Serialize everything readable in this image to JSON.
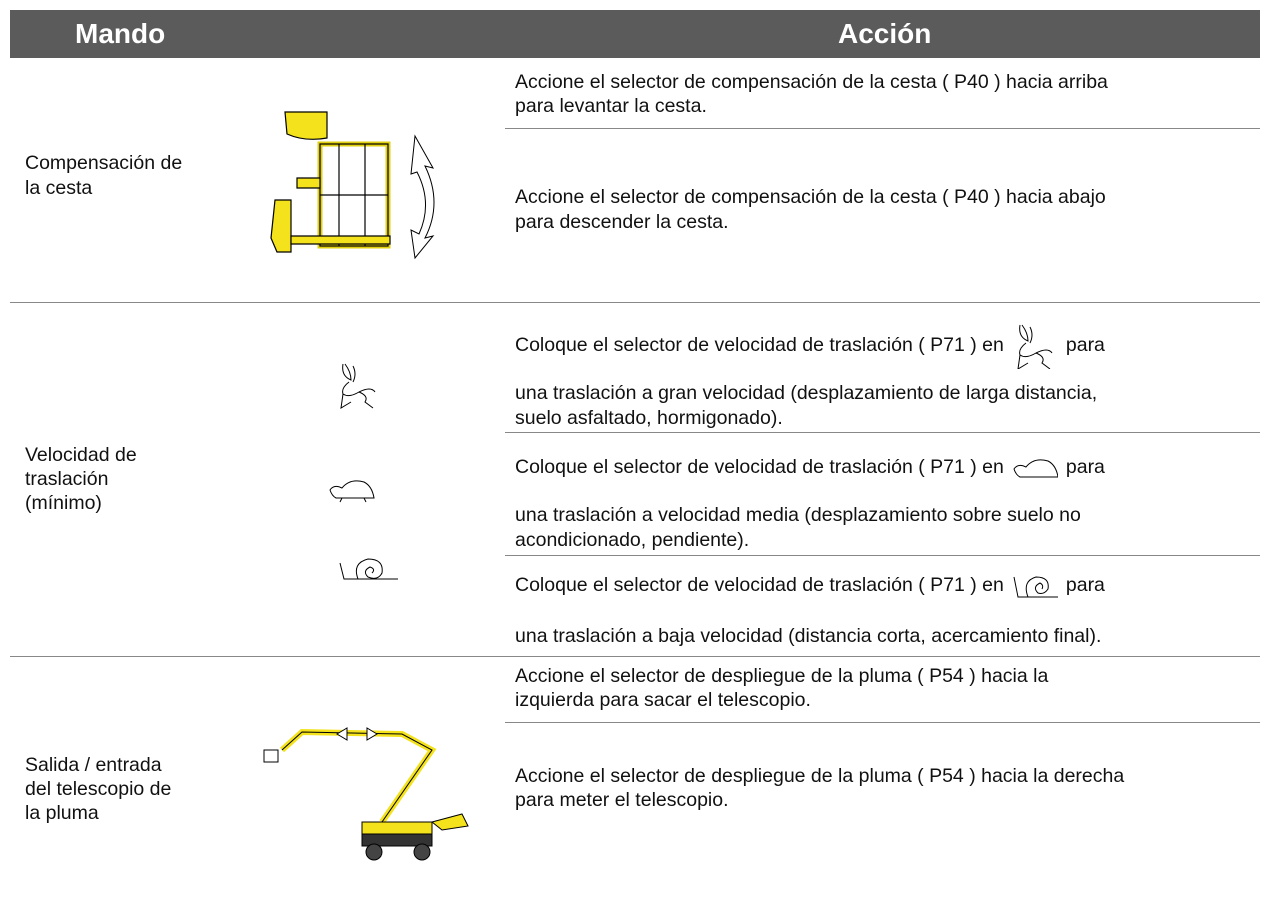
{
  "header": {
    "mando": "Mando",
    "accion": "Acción"
  },
  "rows": [
    {
      "mando": [
        "Compensación de",
        "la cesta"
      ],
      "actions": [
        {
          "lines": [
            "Accione el selector de compensación de la cesta ( P40 ) hacia arriba",
            "para levantar la cesta."
          ]
        },
        {
          "lines": [
            "Accione el selector de compensación de la cesta ( P40 ) hacia abajo",
            "para descender la cesta."
          ]
        }
      ]
    },
    {
      "mando": [
        "Velocidad de",
        "traslación",
        "(mínimo)"
      ],
      "actions": [
        {
          "before": "Coloque el selector de velocidad de traslación ( P71 ) en",
          "after": "para",
          "lines": [
            "una traslación a gran velocidad (desplazamiento de larga distancia,",
            "suelo asfaltado, hormigonado)."
          ]
        },
        {
          "before": "Coloque el selector de velocidad de traslación ( P71 ) en",
          "after": "para",
          "lines": [
            "una traslación a velocidad media (desplazamiento sobre suelo no",
            "acondicionado, pendiente)."
          ]
        },
        {
          "before": "Coloque el selector de velocidad de traslación ( P71 ) en",
          "after": "para",
          "lines": [
            "una traslación a baja velocidad (distancia corta, acercamiento final)."
          ]
        }
      ]
    },
    {
      "mando": [
        "Salida / entrada",
        "del telescopio de",
        "la pluma"
      ],
      "actions": [
        {
          "lines": [
            "Accione el selector de despliegue de la pluma ( P54 ) hacia la",
            "izquierda para sacar el telescopio."
          ]
        },
        {
          "lines": [
            "Accione el selector de despliegue de la pluma ( P54 ) hacia la derecha",
            "para meter el telescopio."
          ]
        }
      ]
    }
  ]
}
